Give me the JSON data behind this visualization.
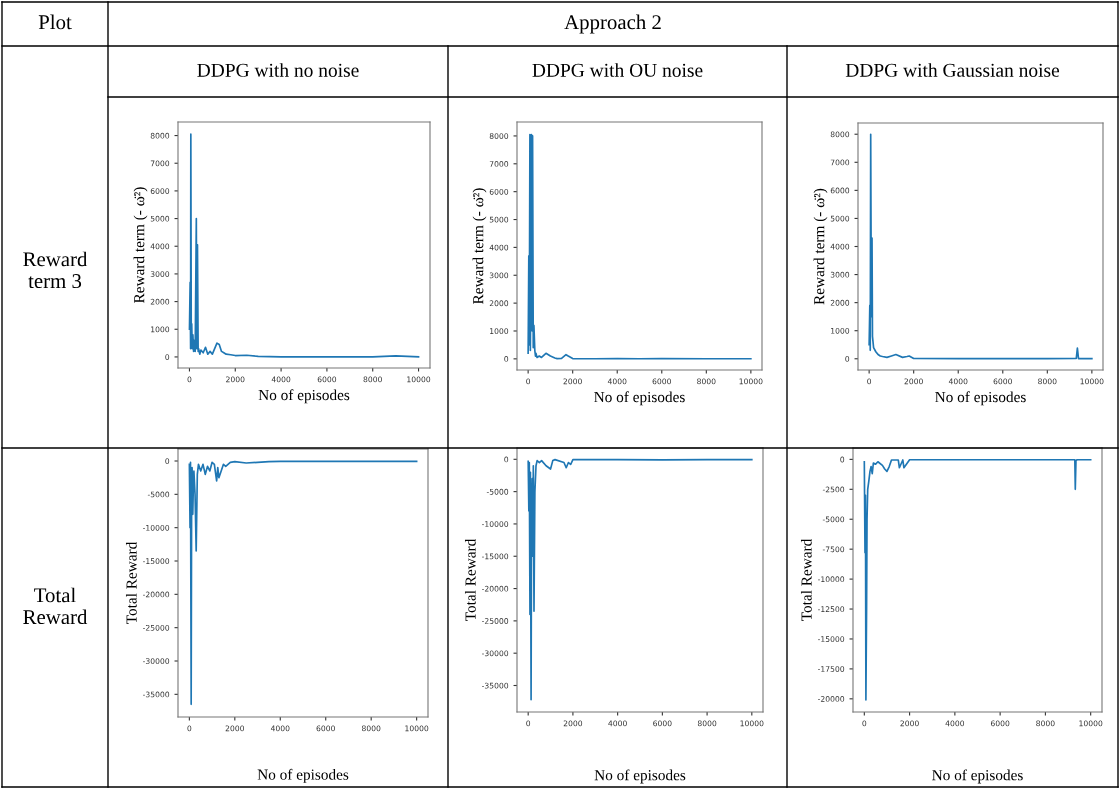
{
  "chart_data": [
    {
      "type": "line",
      "title": "DDPG with no noise",
      "xlabel": "No of episodes",
      "ylabel": "Reward term (- ω̈²)",
      "annotations": [
        "Plot",
        "Approach 2",
        "Reward term 3"
      ],
      "xlim": [
        -500,
        10500
      ],
      "ylim": [
        -400,
        8490
      ],
      "xticks": [
        0,
        2000,
        4000,
        6000,
        8000,
        10000
      ],
      "yticks": [
        0,
        1000,
        2000,
        3000,
        4000,
        5000,
        6000,
        7000,
        8000
      ],
      "grid": false,
      "series": [
        {
          "color": "#1f77b4",
          "x": [
            0,
            30,
            50,
            60,
            80,
            100,
            120,
            150,
            180,
            200,
            250,
            300,
            320,
            350,
            380,
            400,
            450,
            500,
            600,
            700,
            800,
            900,
            1000,
            1100,
            1200,
            1300,
            1400,
            1500,
            1600,
            1800,
            2000,
            2500,
            3000,
            3500,
            4000,
            5000,
            6000,
            7000,
            8000,
            9000,
            10000
          ],
          "values": [
            1000,
            2700,
            300,
            8050,
            400,
            1200,
            300,
            800,
            200,
            600,
            200,
            5000,
            300,
            4050,
            200,
            300,
            100,
            250,
            150,
            350,
            100,
            200,
            100,
            300,
            500,
            450,
            200,
            150,
            100,
            80,
            50,
            60,
            20,
            10,
            5,
            5,
            5,
            5,
            5,
            40,
            5
          ]
        }
      ]
    },
    {
      "type": "line",
      "title": "DDPG with OU noise",
      "xlabel": "No of episodes",
      "ylabel": "Reward term (- ω̈²)",
      "xlim": [
        -500,
        10500
      ],
      "ylim": [
        -400,
        8500
      ],
      "xticks": [
        0,
        2000,
        4000,
        6000,
        8000,
        10000
      ],
      "yticks": [
        0,
        1000,
        2000,
        3000,
        4000,
        5000,
        6000,
        7000,
        8000
      ],
      "grid": false,
      "series": [
        {
          "color": "#1f77b4",
          "x": [
            0,
            30,
            50,
            80,
            100,
            120,
            150,
            180,
            200,
            230,
            260,
            300,
            330,
            350,
            400,
            500,
            600,
            800,
            1000,
            1200,
            1300,
            1500,
            1700,
            1800,
            2000,
            3000,
            4000,
            5000,
            6000,
            8000,
            10000
          ],
          "values": [
            200,
            3700,
            500,
            8050,
            300,
            2600,
            8050,
            1000,
            8000,
            400,
            1200,
            300,
            100,
            200,
            50,
            100,
            50,
            200,
            100,
            30,
            10,
            20,
            150,
            100,
            10,
            5,
            10,
            5,
            10,
            5,
            5
          ]
        }
      ]
    },
    {
      "type": "line",
      "title": "DDPG with Gaussian noise",
      "xlabel": "No of episodes",
      "ylabel": "Reward term (- ω̈²)",
      "xlim": [
        -500,
        10500
      ],
      "ylim": [
        -400,
        8400
      ],
      "xticks": [
        0,
        2000,
        4000,
        6000,
        8000,
        10000
      ],
      "yticks": [
        0,
        1000,
        2000,
        3000,
        4000,
        5000,
        6000,
        7000,
        8000
      ],
      "grid": false,
      "series": [
        {
          "color": "#1f77b4",
          "x": [
            0,
            30,
            50,
            70,
            100,
            130,
            150,
            200,
            300,
            400,
            500,
            600,
            800,
            1000,
            1200,
            1500,
            1700,
            1800,
            2000,
            4000,
            6000,
            8000,
            9300,
            9350,
            9400,
            10000
          ],
          "values": [
            500,
            1900,
            300,
            8000,
            1500,
            4300,
            800,
            400,
            250,
            150,
            100,
            80,
            50,
            100,
            150,
            50,
            80,
            100,
            10,
            5,
            5,
            5,
            10,
            380,
            5,
            5
          ]
        }
      ]
    },
    {
      "type": "line",
      "xlabel": "No of episodes",
      "ylabel": "Total Reward",
      "annotations": [
        "Total Reward"
      ],
      "xlim": [
        -500,
        10500
      ],
      "ylim": [
        -38400,
        1800
      ],
      "xticks": [
        0,
        2000,
        4000,
        6000,
        8000,
        10000
      ],
      "yticks": [
        -35000,
        -30000,
        -25000,
        -20000,
        -15000,
        -10000,
        -5000,
        0
      ],
      "grid": false,
      "series": [
        {
          "color": "#1f77b4",
          "x": [
            0,
            30,
            50,
            80,
            100,
            120,
            150,
            180,
            200,
            250,
            300,
            350,
            400,
            500,
            600,
            700,
            800,
            900,
            1000,
            1100,
            1200,
            1250,
            1300,
            1400,
            1500,
            1600,
            1800,
            2000,
            2500,
            3000,
            3500,
            4000,
            6000,
            8000,
            10000
          ],
          "values": [
            -500,
            -10000,
            -200,
            -36500,
            -5000,
            -1000,
            -8000,
            -3000,
            -1500,
            -5000,
            -13500,
            -2000,
            -500,
            -1500,
            -500,
            -2000,
            -800,
            -1500,
            -200,
            -500,
            -3000,
            -1000,
            -2500,
            -1500,
            -500,
            -800,
            -200,
            -100,
            -300,
            -200,
            -100,
            -50,
            -50,
            -50,
            -50
          ]
        }
      ]
    },
    {
      "type": "line",
      "xlabel": "No of episodes",
      "ylabel": "Total Reward",
      "xlim": [
        -500,
        10500
      ],
      "ylim": [
        -39100,
        1750
      ],
      "xticks": [
        0,
        2000,
        4000,
        6000,
        8000,
        10000
      ],
      "yticks": [
        -35000,
        -30000,
        -25000,
        -20000,
        -15000,
        -10000,
        -5000,
        0
      ],
      "grid": false,
      "series": [
        {
          "color": "#1f77b4",
          "x": [
            0,
            30,
            50,
            80,
            100,
            130,
            150,
            180,
            200,
            230,
            260,
            300,
            350,
            400,
            500,
            600,
            800,
            1000,
            1100,
            1200,
            1600,
            1700,
            1800,
            1900,
            2000,
            4000,
            6000,
            8000,
            10000
          ],
          "values": [
            -300,
            -8000,
            -500,
            -24000,
            -2000,
            -37200,
            -10000,
            -3000,
            -15000,
            -1000,
            -23500,
            -5000,
            -1000,
            -200,
            -500,
            -200,
            -1000,
            -1500,
            -200,
            -50,
            -500,
            -1300,
            -500,
            -800,
            -50,
            -50,
            -100,
            -50,
            -50
          ]
        }
      ]
    },
    {
      "type": "line",
      "xlabel": "No of episodes",
      "ylabel": "Total Reward",
      "xlim": [
        -500,
        10500
      ],
      "ylim": [
        -21100,
        950
      ],
      "xticks": [
        0,
        2000,
        4000,
        6000,
        8000,
        10000
      ],
      "yticks": [
        -20000,
        -17500,
        -15000,
        -12500,
        -10000,
        -7500,
        -5000,
        -2500,
        0
      ],
      "grid": false,
      "series": [
        {
          "color": "#1f77b4",
          "x": [
            0,
            30,
            50,
            70,
            100,
            120,
            150,
            200,
            250,
            300,
            350,
            400,
            500,
            600,
            800,
            900,
            1000,
            1100,
            1200,
            1500,
            1550,
            1700,
            1750,
            2000,
            4000,
            6000,
            8000,
            9300,
            9320,
            9350,
            9400,
            10000
          ],
          "values": [
            -200,
            -7800,
            -3000,
            -20100,
            -12500,
            -5000,
            -2500,
            -1800,
            -1000,
            -600,
            -1200,
            -300,
            -400,
            -200,
            -500,
            -800,
            -1000,
            -600,
            -50,
            -50,
            -700,
            -50,
            -700,
            -30,
            -30,
            -30,
            -30,
            -30,
            -2500,
            -100,
            -30,
            -30
          ]
        }
      ]
    }
  ]
}
